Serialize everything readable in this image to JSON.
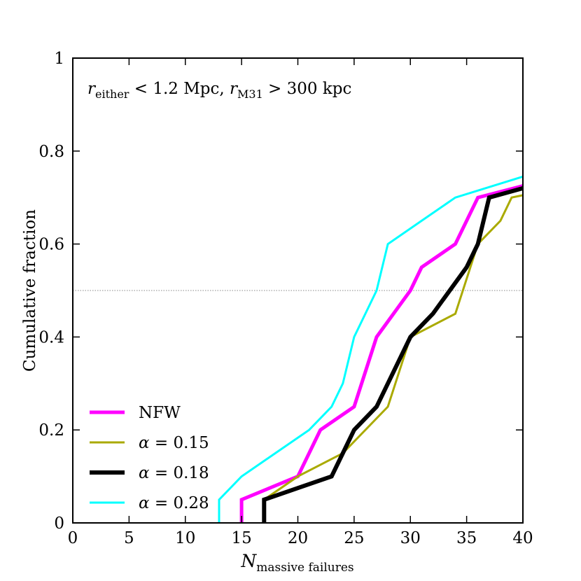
{
  "chart_data": {
    "type": "line",
    "title": "",
    "xlabel": {
      "main": "N",
      "sub": "massive failures"
    },
    "ylabel": "Cumulative fraction",
    "xlim": [
      0,
      40
    ],
    "ylim": [
      0,
      1
    ],
    "x_ticks": [
      0,
      5,
      10,
      15,
      20,
      25,
      30,
      35,
      40
    ],
    "x_tick_labels": [
      "0",
      "5",
      "10",
      "15",
      "20",
      "25",
      "30",
      "35",
      "40"
    ],
    "y_ticks": [
      0,
      0.2,
      0.4,
      0.6,
      0.8,
      1.0
    ],
    "y_tick_labels": [
      "0",
      "0.2",
      "0.4",
      "0.6",
      "0.8",
      "1"
    ],
    "reference_line": {
      "y": 0.5,
      "style": "dotted",
      "color": "#888888"
    },
    "annotation": {
      "r1": "r",
      "sub1": "either",
      "part1": " < 1.2 Mpc, ",
      "r2": "r",
      "sub2": "M31",
      "part2": " > 300 kpc"
    },
    "legend_position": "lower-left",
    "series": [
      {
        "name": "NFW",
        "color": "#ff00ff",
        "width": 5,
        "points": [
          [
            15,
            0
          ],
          [
            15,
            0.05
          ],
          [
            20,
            0.1
          ],
          [
            22,
            0.2
          ],
          [
            25,
            0.25
          ],
          [
            27,
            0.4
          ],
          [
            30,
            0.5
          ],
          [
            31,
            0.55
          ],
          [
            34,
            0.6
          ],
          [
            36,
            0.7
          ],
          [
            40,
            0.725
          ]
        ]
      },
      {
        "name": "α = 0.15",
        "color": "#aaaa00",
        "width": 3,
        "points": [
          [
            17,
            0
          ],
          [
            17,
            0.05
          ],
          [
            20,
            0.1
          ],
          [
            24,
            0.15
          ],
          [
            28,
            0.25
          ],
          [
            30,
            0.4
          ],
          [
            34,
            0.45
          ],
          [
            36,
            0.6
          ],
          [
            38,
            0.65
          ],
          [
            39,
            0.7
          ],
          [
            40,
            0.705
          ]
        ]
      },
      {
        "name": "α = 0.18",
        "color": "#000000",
        "width": 6,
        "points": [
          [
            17,
            0
          ],
          [
            17,
            0.05
          ],
          [
            20,
            0.075
          ],
          [
            23,
            0.1
          ],
          [
            25,
            0.2
          ],
          [
            27,
            0.25
          ],
          [
            30,
            0.4
          ],
          [
            32,
            0.45
          ],
          [
            35,
            0.55
          ],
          [
            36,
            0.6
          ],
          [
            37,
            0.7
          ],
          [
            40,
            0.72
          ]
        ]
      },
      {
        "name": "α = 0.28",
        "color": "#00ffff",
        "width": 3,
        "points": [
          [
            13,
            0
          ],
          [
            13,
            0.05
          ],
          [
            15,
            0.1
          ],
          [
            18,
            0.15
          ],
          [
            21,
            0.2
          ],
          [
            23,
            0.25
          ],
          [
            24,
            0.3
          ],
          [
            25,
            0.4
          ],
          [
            27,
            0.5
          ],
          [
            28,
            0.6
          ],
          [
            31,
            0.65
          ],
          [
            34,
            0.7
          ],
          [
            40,
            0.745
          ]
        ]
      }
    ],
    "legend": [
      {
        "label_prefix": "",
        "label_value": "NFW",
        "color": "#ff00ff",
        "width": 5
      },
      {
        "label_prefix": "α",
        "label_value": " = 0.15",
        "color": "#aaaa00",
        "width": 3
      },
      {
        "label_prefix": "α",
        "label_value": " = 0.18",
        "color": "#000000",
        "width": 6
      },
      {
        "label_prefix": "α",
        "label_value": " = 0.28",
        "color": "#00ffff",
        "width": 3
      }
    ]
  }
}
